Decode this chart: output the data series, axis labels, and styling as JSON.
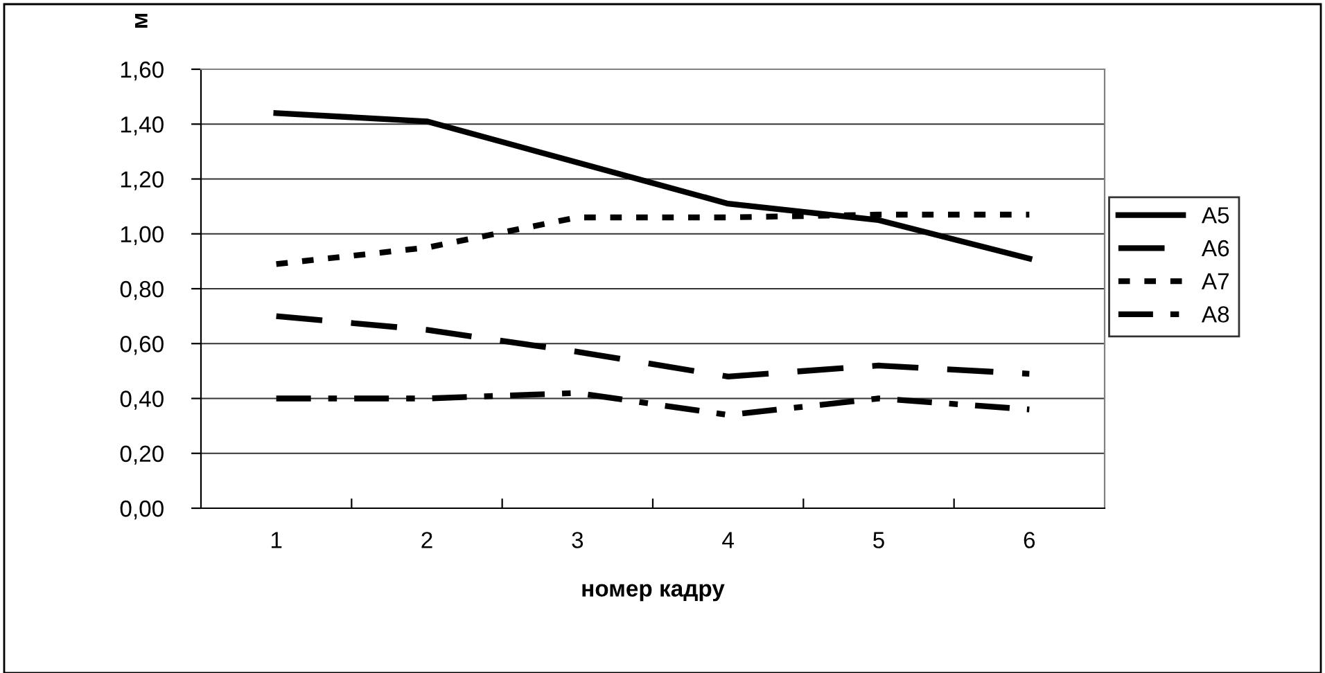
{
  "chart_data": {
    "type": "line",
    "xlabel": "номер кадру",
    "ylabel": "м",
    "categories": [
      "1",
      "2",
      "3",
      "4",
      "5",
      "6"
    ],
    "series": [
      {
        "name": "A5",
        "color": "#000000",
        "line_style": "solid",
        "values": [
          1.44,
          1.41,
          1.26,
          1.11,
          1.05,
          0.91
        ]
      },
      {
        "name": "A6",
        "color": "#000000",
        "line_style": "dashed",
        "values": [
          0.7,
          0.65,
          0.57,
          0.48,
          0.52,
          0.49
        ]
      },
      {
        "name": "A7",
        "color": "#000000",
        "line_style": "dotted",
        "values": [
          0.89,
          0.95,
          1.06,
          1.06,
          1.07,
          1.07
        ]
      },
      {
        "name": "A8",
        "color": "#000000",
        "line_style": "dashdot",
        "values": [
          0.4,
          0.4,
          0.42,
          0.34,
          0.4,
          0.36
        ]
      }
    ],
    "ylim": [
      0,
      1.6
    ],
    "yticks": [
      {
        "value": 0,
        "label": "0,00"
      },
      {
        "value": 0.2,
        "label": "0,20"
      },
      {
        "value": 0.4,
        "label": "0,40"
      },
      {
        "value": 0.6,
        "label": "0,60"
      },
      {
        "value": 0.8,
        "label": "0,80"
      },
      {
        "value": 1.0,
        "label": "1,00"
      },
      {
        "value": 1.2,
        "label": "1,20"
      },
      {
        "value": 1.4,
        "label": "1,40"
      },
      {
        "value": 1.6,
        "label": "1,60"
      }
    ],
    "grid": "y",
    "legend": "right",
    "marker": "none"
  }
}
